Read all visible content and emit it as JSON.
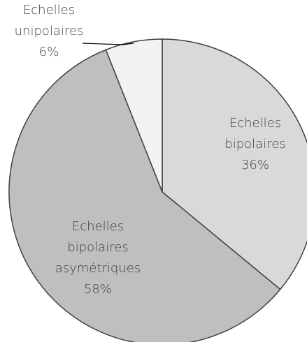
{
  "chart_data": {
    "type": "pie",
    "categories": [
      "Echelles bipolaires",
      "Echelles bipolaires asymétriques",
      "Echelles unipolaires"
    ],
    "values": [
      36,
      58,
      6
    ],
    "value_labels": [
      "36%",
      "58%",
      "6%"
    ],
    "colors": [
      "#d9d9d9",
      "#bfbfbf",
      "#f2f2f2"
    ]
  }
}
